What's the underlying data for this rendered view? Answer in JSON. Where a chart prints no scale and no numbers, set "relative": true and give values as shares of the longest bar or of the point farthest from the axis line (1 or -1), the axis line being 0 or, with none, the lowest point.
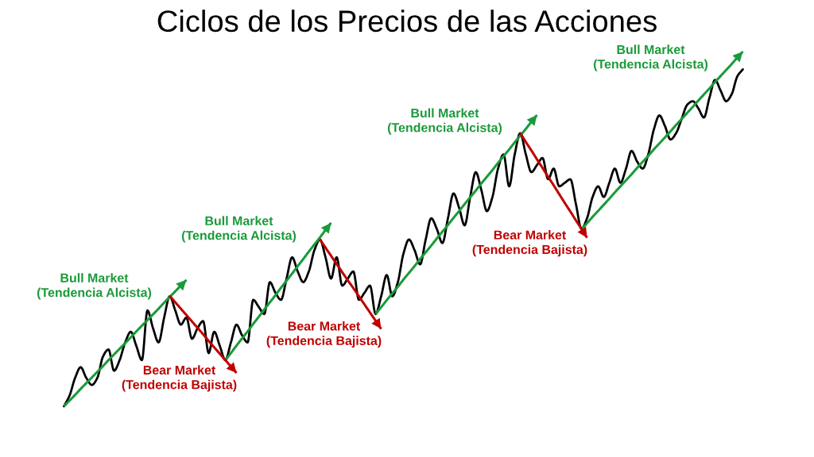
{
  "chart_data": {
    "type": "line",
    "title": "Ciclos de los Precios de las Acciones",
    "relative": true,
    "categories": [
      null,
      null,
      null,
      null,
      null,
      null,
      null,
      null,
      null,
      null,
      null,
      null,
      null,
      null,
      null,
      null,
      null,
      null,
      null,
      null,
      null,
      null,
      null,
      null,
      null,
      null,
      null,
      null,
      null,
      null,
      null,
      null,
      null,
      null,
      null,
      null,
      null,
      null,
      null,
      null,
      null,
      null,
      null,
      null,
      null,
      null,
      null,
      null,
      null,
      null,
      null,
      null,
      null,
      null,
      null,
      null,
      null,
      null,
      null,
      null,
      null,
      null,
      null,
      null,
      null,
      null,
      null,
      null,
      null,
      null,
      null,
      null,
      null,
      null,
      null,
      null,
      null,
      null,
      null,
      null,
      null,
      null,
      null,
      null,
      null,
      null,
      null,
      null,
      null,
      null,
      null,
      null,
      null,
      null,
      null,
      null,
      null,
      null,
      null,
      null,
      null,
      null,
      null,
      null,
      null,
      null,
      null,
      null,
      null,
      null,
      null,
      null,
      null,
      null,
      null,
      null,
      null,
      null,
      null,
      null,
      null,
      null,
      null
    ],
    "series": [
      {
        "color": "#000000",
        "values": [
          0,
          0.03,
          0.08,
          0.11,
          0.08,
          0.06,
          0.08,
          0.14,
          0.16,
          0.1,
          0.13,
          0.18,
          0.21,
          0.17,
          0.13,
          0.27,
          0.22,
          0.18,
          0.25,
          0.31,
          0.27,
          0.23,
          0.25,
          0.19,
          0.22,
          0.24,
          0.15,
          0.21,
          0.17,
          0.13,
          0.18,
          0.23,
          0.2,
          0.18,
          0.3,
          0.28,
          0.26,
          0.35,
          0.32,
          0.3,
          0.36,
          0.42,
          0.38,
          0.35,
          0.38,
          0.44,
          0.47,
          0.42,
          0.36,
          0.42,
          0.34,
          0.36,
          0.38,
          0.3,
          0.32,
          0.34,
          0.26,
          0.31,
          0.37,
          0.31,
          0.35,
          0.43,
          0.47,
          0.44,
          0.4,
          0.47,
          0.53,
          0.5,
          0.46,
          0.53,
          0.6,
          0.56,
          0.51,
          0.59,
          0.66,
          0.61,
          0.55,
          0.59,
          0.67,
          0.71,
          0.62,
          0.71,
          0.77,
          0.71,
          0.66,
          0.68,
          0.7,
          0.64,
          0.67,
          0.62,
          0.63,
          0.64,
          0.57,
          0.5,
          0.53,
          0.59,
          0.62,
          0.59,
          0.63,
          0.67,
          0.63,
          0.67,
          0.72,
          0.69,
          0.67,
          0.71,
          0.78,
          0.82,
          0.79,
          0.752,
          0.77,
          0.81,
          0.85,
          0.86,
          0.84,
          0.814,
          0.87,
          0.92,
          0.89,
          0.86,
          0.88,
          0.93,
          0.95
        ]
      },
      {
        "name": "Bull Market\n(Tendencia Alcista)",
        "color": "#1a9a3a",
        "values": [
          0,
          0.016,
          0.032,
          0.049,
          0.065,
          0.081,
          0.097,
          0.113,
          0.13,
          0.146,
          0.162,
          0.178,
          0.194,
          0.211,
          0.227,
          0.243,
          0.259,
          0.275,
          0.292,
          0.308,
          0.324,
          0.34,
          0.356,
          null,
          null,
          null,
          null,
          null,
          null,
          0.13,
          0.15,
          0.171,
          0.191,
          0.211,
          0.232,
          0.252,
          0.273,
          0.293,
          0.313,
          0.334,
          0.354,
          0.374,
          0.395,
          0.415,
          0.436,
          0.456,
          0.476,
          0.497,
          0.517,
          null,
          null,
          null,
          null,
          null,
          null,
          null,
          0.26,
          0.279,
          0.299,
          0.318,
          0.337,
          0.357,
          0.376,
          0.395,
          0.415,
          0.434,
          0.453,
          0.473,
          0.492,
          0.511,
          0.531,
          0.55,
          0.57,
          0.589,
          0.608,
          0.628,
          0.647,
          0.666,
          0.686,
          0.705,
          0.724,
          0.744,
          0.763,
          0.782,
          0.802,
          0.821,
          null,
          null,
          null,
          null,
          null,
          null,
          null,
          0.499,
          0.516,
          0.534,
          0.551,
          0.568,
          0.585,
          0.603,
          0.62,
          0.637,
          0.654,
          0.672,
          0.689,
          0.706,
          0.724,
          0.741,
          0.758,
          0.775,
          0.793,
          0.81,
          0.827,
          0.844,
          0.862,
          0.879,
          0.896,
          0.914,
          0.931,
          0.948,
          0.965,
          0.983,
          1.0
        ]
      },
      {
        "name": "Bear Market\n(Tendencia Bajista)",
        "color": "#c00000",
        "values": [
          null,
          null,
          null,
          null,
          null,
          null,
          null,
          null,
          null,
          null,
          null,
          null,
          null,
          null,
          null,
          null,
          null,
          null,
          null,
          0.311,
          0.293,
          0.275,
          0.257,
          0.239,
          0.221,
          0.203,
          0.184,
          0.166,
          0.148,
          0.13,
          0.112,
          0.094,
          null,
          null,
          null,
          null,
          null,
          null,
          null,
          null,
          null,
          null,
          null,
          null,
          null,
          null,
          0.47,
          0.447,
          0.424,
          0.401,
          0.378,
          0.355,
          0.333,
          0.31,
          0.287,
          0.264,
          0.241,
          0.218,
          null,
          null,
          null,
          null,
          null,
          null,
          null,
          null,
          null,
          null,
          null,
          null,
          null,
          null,
          null,
          null,
          null,
          null,
          null,
          null,
          null,
          null,
          null,
          null,
          0.77,
          0.745,
          0.721,
          0.696,
          0.672,
          0.647,
          0.623,
          0.598,
          0.573,
          0.549,
          0.524,
          0.5,
          0.475,
          null,
          null,
          null,
          null,
          null,
          null,
          null,
          null,
          null,
          null,
          null,
          null,
          null,
          null,
          null,
          null,
          null,
          null,
          null,
          null,
          null,
          null,
          null,
          null,
          null,
          null,
          null,
          null
        ]
      }
    ]
  }
}
